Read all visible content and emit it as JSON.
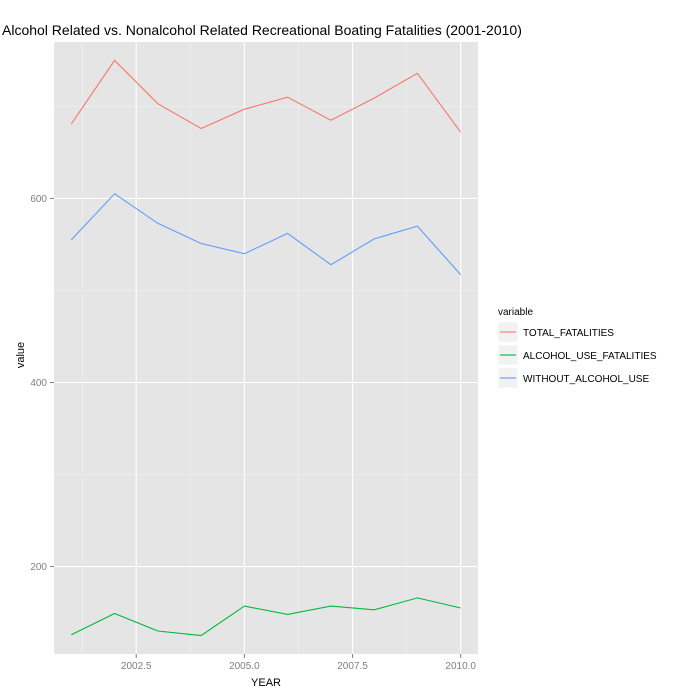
{
  "chart_data": {
    "type": "line",
    "title": "Alcohol Related vs. Nonalcohol Related Recreational Boating Fatalities (2001-2010)",
    "xlabel": "YEAR",
    "ylabel": "value",
    "xlim": [
      2000.6,
      2010.4
    ],
    "ylim": [
      105,
      770
    ],
    "x_ticks": [
      "2002.5",
      "2005.0",
      "2007.5",
      "2010.0"
    ],
    "y_ticks": [
      "200",
      "400",
      "600"
    ],
    "grid": true,
    "x": [
      2001,
      2002,
      2003,
      2004,
      2005,
      2006,
      2007,
      2008,
      2009,
      2010
    ],
    "series": [
      {
        "name": "TOTAL_FATALITIES",
        "color": "#F8766D",
        "values": [
          681,
          750,
          703,
          676,
          697,
          710,
          685,
          709,
          736,
          672
        ]
      },
      {
        "name": "ALCOHOL_USE_FATALITIES",
        "color": "#00BA38",
        "values": [
          126,
          149,
          130,
          125,
          157,
          148,
          157,
          153,
          166,
          155
        ]
      },
      {
        "name": "WITHOUT_ALCOHOL_USE",
        "color": "#619CFF",
        "values": [
          555,
          605,
          573,
          551,
          540,
          562,
          528,
          556,
          570,
          517
        ]
      }
    ],
    "legend": {
      "title": "variable",
      "position": "right"
    }
  }
}
